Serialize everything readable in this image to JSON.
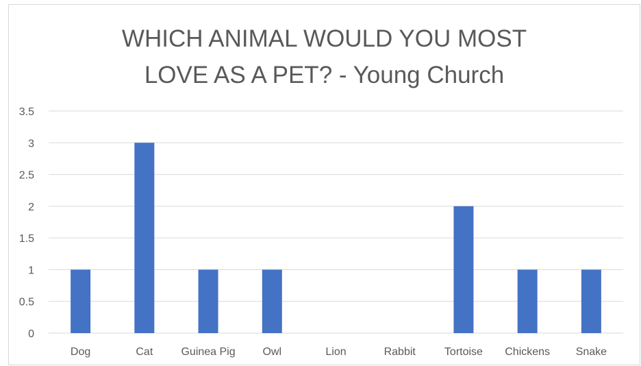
{
  "chart_data": {
    "type": "bar",
    "title": "WHICH ANIMAL WOULD YOU MOST\nLOVE AS A PET? - Young Church",
    "xlabel": "",
    "ylabel": "",
    "categories": [
      "Dog",
      "Cat",
      "Guinea Pig",
      "Owl",
      "Lion",
      "Rabbit",
      "Tortoise",
      "Chickens",
      "Snake"
    ],
    "values": [
      1,
      3,
      1,
      1,
      0,
      0,
      2,
      1,
      1
    ],
    "ylim": [
      0,
      3.5
    ],
    "yticks": [
      "0",
      "0.5",
      "1",
      "1.5",
      "2",
      "2.5",
      "3",
      "3.5"
    ],
    "grid": true,
    "legend": "none",
    "bar_color": "#4472c4",
    "grid_color": "#d9d9d9"
  }
}
